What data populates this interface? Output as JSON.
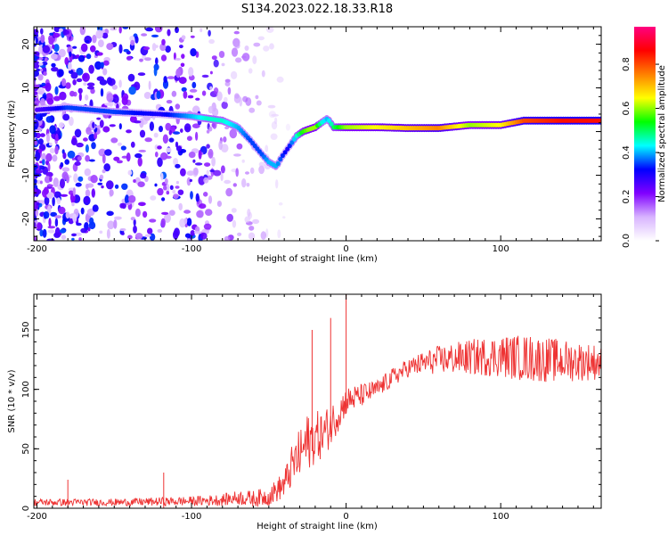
{
  "title": "S134.2023.022.18.33.R18",
  "chart_data": [
    {
      "type": "heatmap",
      "xlabel": "Height of straight line (km)",
      "ylabel": "Frequency (Hz)",
      "xlim": [
        -202,
        165
      ],
      "ylim": [
        -25,
        24
      ],
      "xticks": [
        -200,
        -100,
        0,
        100
      ],
      "yticks": [
        -20,
        -10,
        0,
        10,
        20
      ],
      "colorbar": {
        "label": "Normalized spectral amplitude",
        "range": [
          0,
          0.97
        ],
        "ticks": [
          0.0,
          0.2,
          0.4,
          0.6,
          0.8
        ],
        "colors": [
          "#ffffff",
          "#d8b4ff",
          "#8000ff",
          "#0000ff",
          "#00ffff",
          "#00ff00",
          "#ffff00",
          "#ff8000",
          "#ff0000",
          "#ff0080"
        ]
      },
      "ridge": {
        "x": [
          -200,
          -180,
          -150,
          -120,
          -100,
          -90,
          -80,
          -70,
          -62,
          -55,
          -50,
          -45,
          -42,
          -38,
          -32,
          -28,
          -24,
          -20,
          -16,
          -12,
          -8,
          0,
          20,
          40,
          60,
          80,
          100,
          115,
          140,
          165
        ],
        "y": [
          5,
          5.5,
          4.5,
          4,
          3.5,
          3,
          2.5,
          1,
          -2,
          -5,
          -7,
          -8,
          -6,
          -4,
          -1,
          0,
          0.5,
          1,
          2,
          3,
          1,
          1,
          1,
          0.8,
          0.8,
          1.5,
          1.5,
          2.5,
          2.5,
          2.5
        ],
        "amplitude": [
          0.25,
          0.35,
          0.35,
          0.3,
          0.4,
          0.45,
          0.45,
          0.4,
          0.35,
          0.35,
          0.4,
          0.4,
          0.35,
          0.3,
          0.45,
          0.55,
          0.6,
          0.6,
          0.45,
          0.4,
          0.5,
          0.6,
          0.65,
          0.7,
          0.75,
          0.6,
          0.65,
          0.8,
          0.85,
          0.85
        ]
      }
    },
    {
      "type": "line",
      "xlabel": "Height of straight line (km)",
      "ylabel": "SNR (10 * v/v)",
      "xlim": [
        -202,
        165
      ],
      "ylim": [
        0,
        180
      ],
      "xticks": [
        -200,
        -100,
        0,
        100
      ],
      "yticks": [
        0,
        50,
        100,
        150
      ],
      "series": [
        {
          "color": "#ee3333",
          "envelope_x": [
            -200,
            -150,
            -100,
            -80,
            -70,
            -60,
            -50,
            -40,
            -35,
            -30,
            -25,
            -20,
            -15,
            -10,
            -5,
            0,
            10,
            20,
            30,
            40,
            50,
            60,
            80,
            100,
            120,
            140,
            165
          ],
          "envelope_y": [
            5,
            5,
            6,
            7,
            9,
            8,
            10,
            20,
            35,
            45,
            55,
            60,
            62,
            70,
            80,
            90,
            95,
            100,
            110,
            118,
            122,
            125,
            127,
            128,
            126,
            124,
            123
          ],
          "noise": [
            3,
            3,
            4,
            5,
            6,
            7,
            8,
            12,
            18,
            22,
            25,
            22,
            20,
            18,
            15,
            12,
            10,
            8,
            8,
            8,
            10,
            12,
            15,
            18,
            20,
            18,
            15
          ],
          "spikes_x": [
            -180,
            -118,
            -22,
            -10,
            0
          ],
          "spikes_y": [
            24,
            30,
            150,
            160,
            180
          ]
        }
      ]
    }
  ]
}
